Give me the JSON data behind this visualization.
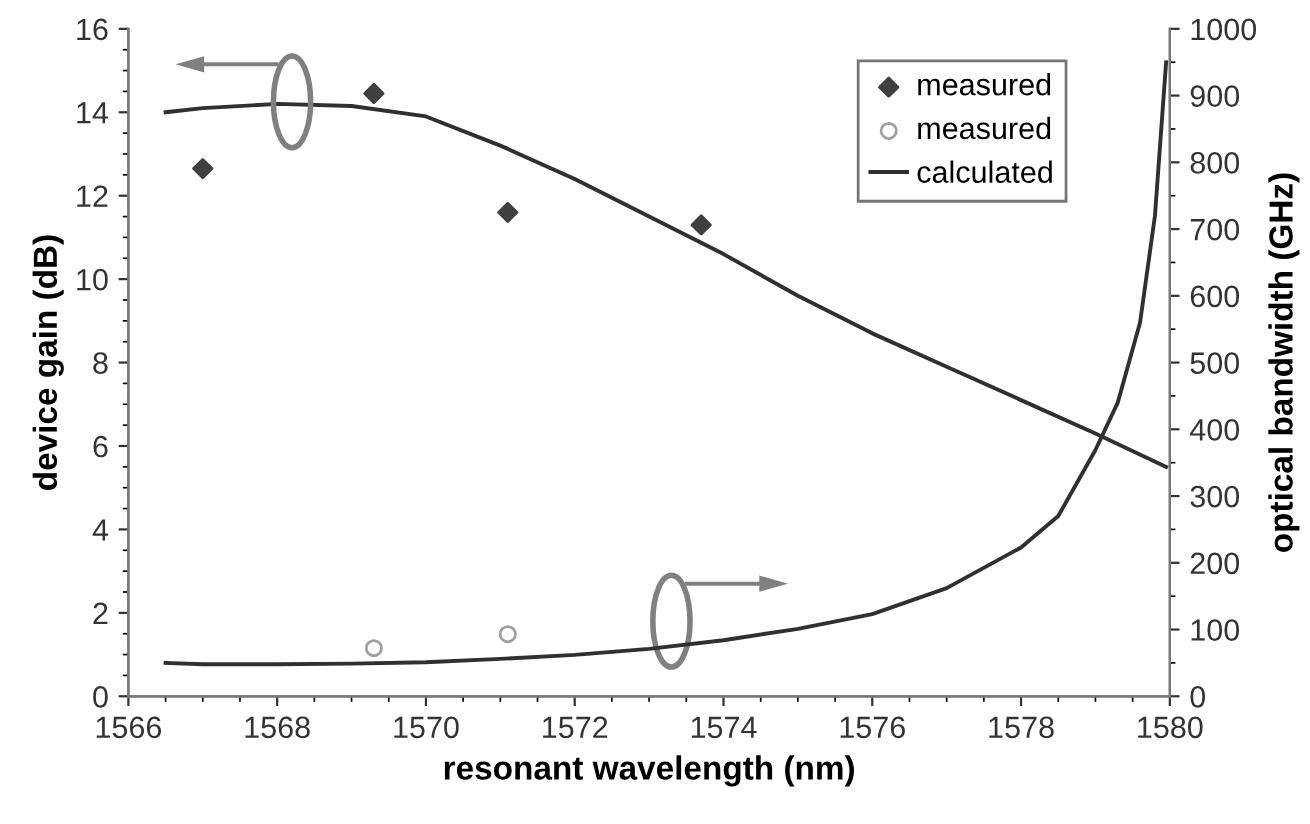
{
  "chart_data": {
    "type": "scatter",
    "xlabel": "resonant wavelength (nm)",
    "ylabel": "device gain (dB)",
    "y2label": "optical bandwidth (GHz)",
    "xlim": [
      1566,
      1580
    ],
    "xticks": [
      1566,
      1568,
      1570,
      1572,
      1574,
      1576,
      1578,
      1580
    ],
    "ylim": [
      0,
      16
    ],
    "yticks": [
      0,
      2,
      4,
      6,
      8,
      10,
      12,
      14,
      16
    ],
    "y2lim": [
      0,
      1000
    ],
    "y2ticks": [
      0,
      100,
      200,
      300,
      400,
      500,
      600,
      700,
      800,
      900,
      1000
    ],
    "legend": "top right",
    "series": [
      {
        "name": "measured",
        "marker": "diamond",
        "color": "#404040",
        "x": [
          1567,
          1569.3,
          1571.1,
          1573.7
        ],
        "values": [
          12.65,
          14.45,
          11.6,
          11.3
        ]
      },
      {
        "name": "measured",
        "marker": "circle",
        "color": "#a0a0a0",
        "axis": "y2",
        "x": [
          1569.3,
          1571.1
        ],
        "values": [
          72,
          93
        ]
      },
      {
        "name": "calculated",
        "type": "line",
        "color": "#303030",
        "x": [
          1566.5,
          1567,
          1568,
          1569,
          1570,
          1571,
          1572,
          1573,
          1574,
          1575,
          1576,
          1577,
          1578,
          1579,
          1579.95
        ],
        "values": [
          14.0,
          14.1,
          14.2,
          14.15,
          13.9,
          13.2,
          12.4,
          11.5,
          10.6,
          9.6,
          8.7,
          7.9,
          7.1,
          6.3,
          5.5
        ]
      },
      {
        "type": "line",
        "color": "#303030",
        "axis": "y2",
        "x": [
          1566.5,
          1567,
          1568,
          1569,
          1570,
          1571,
          1572,
          1573,
          1574,
          1575,
          1576,
          1577,
          1578,
          1578.5,
          1579,
          1579.3,
          1579.6,
          1579.8,
          1579.95
        ],
        "values": [
          50,
          48,
          48,
          49,
          51,
          56,
          62,
          71,
          84,
          101,
          123,
          162,
          223,
          270,
          369,
          440,
          560,
          720,
          950
        ]
      }
    ]
  }
}
